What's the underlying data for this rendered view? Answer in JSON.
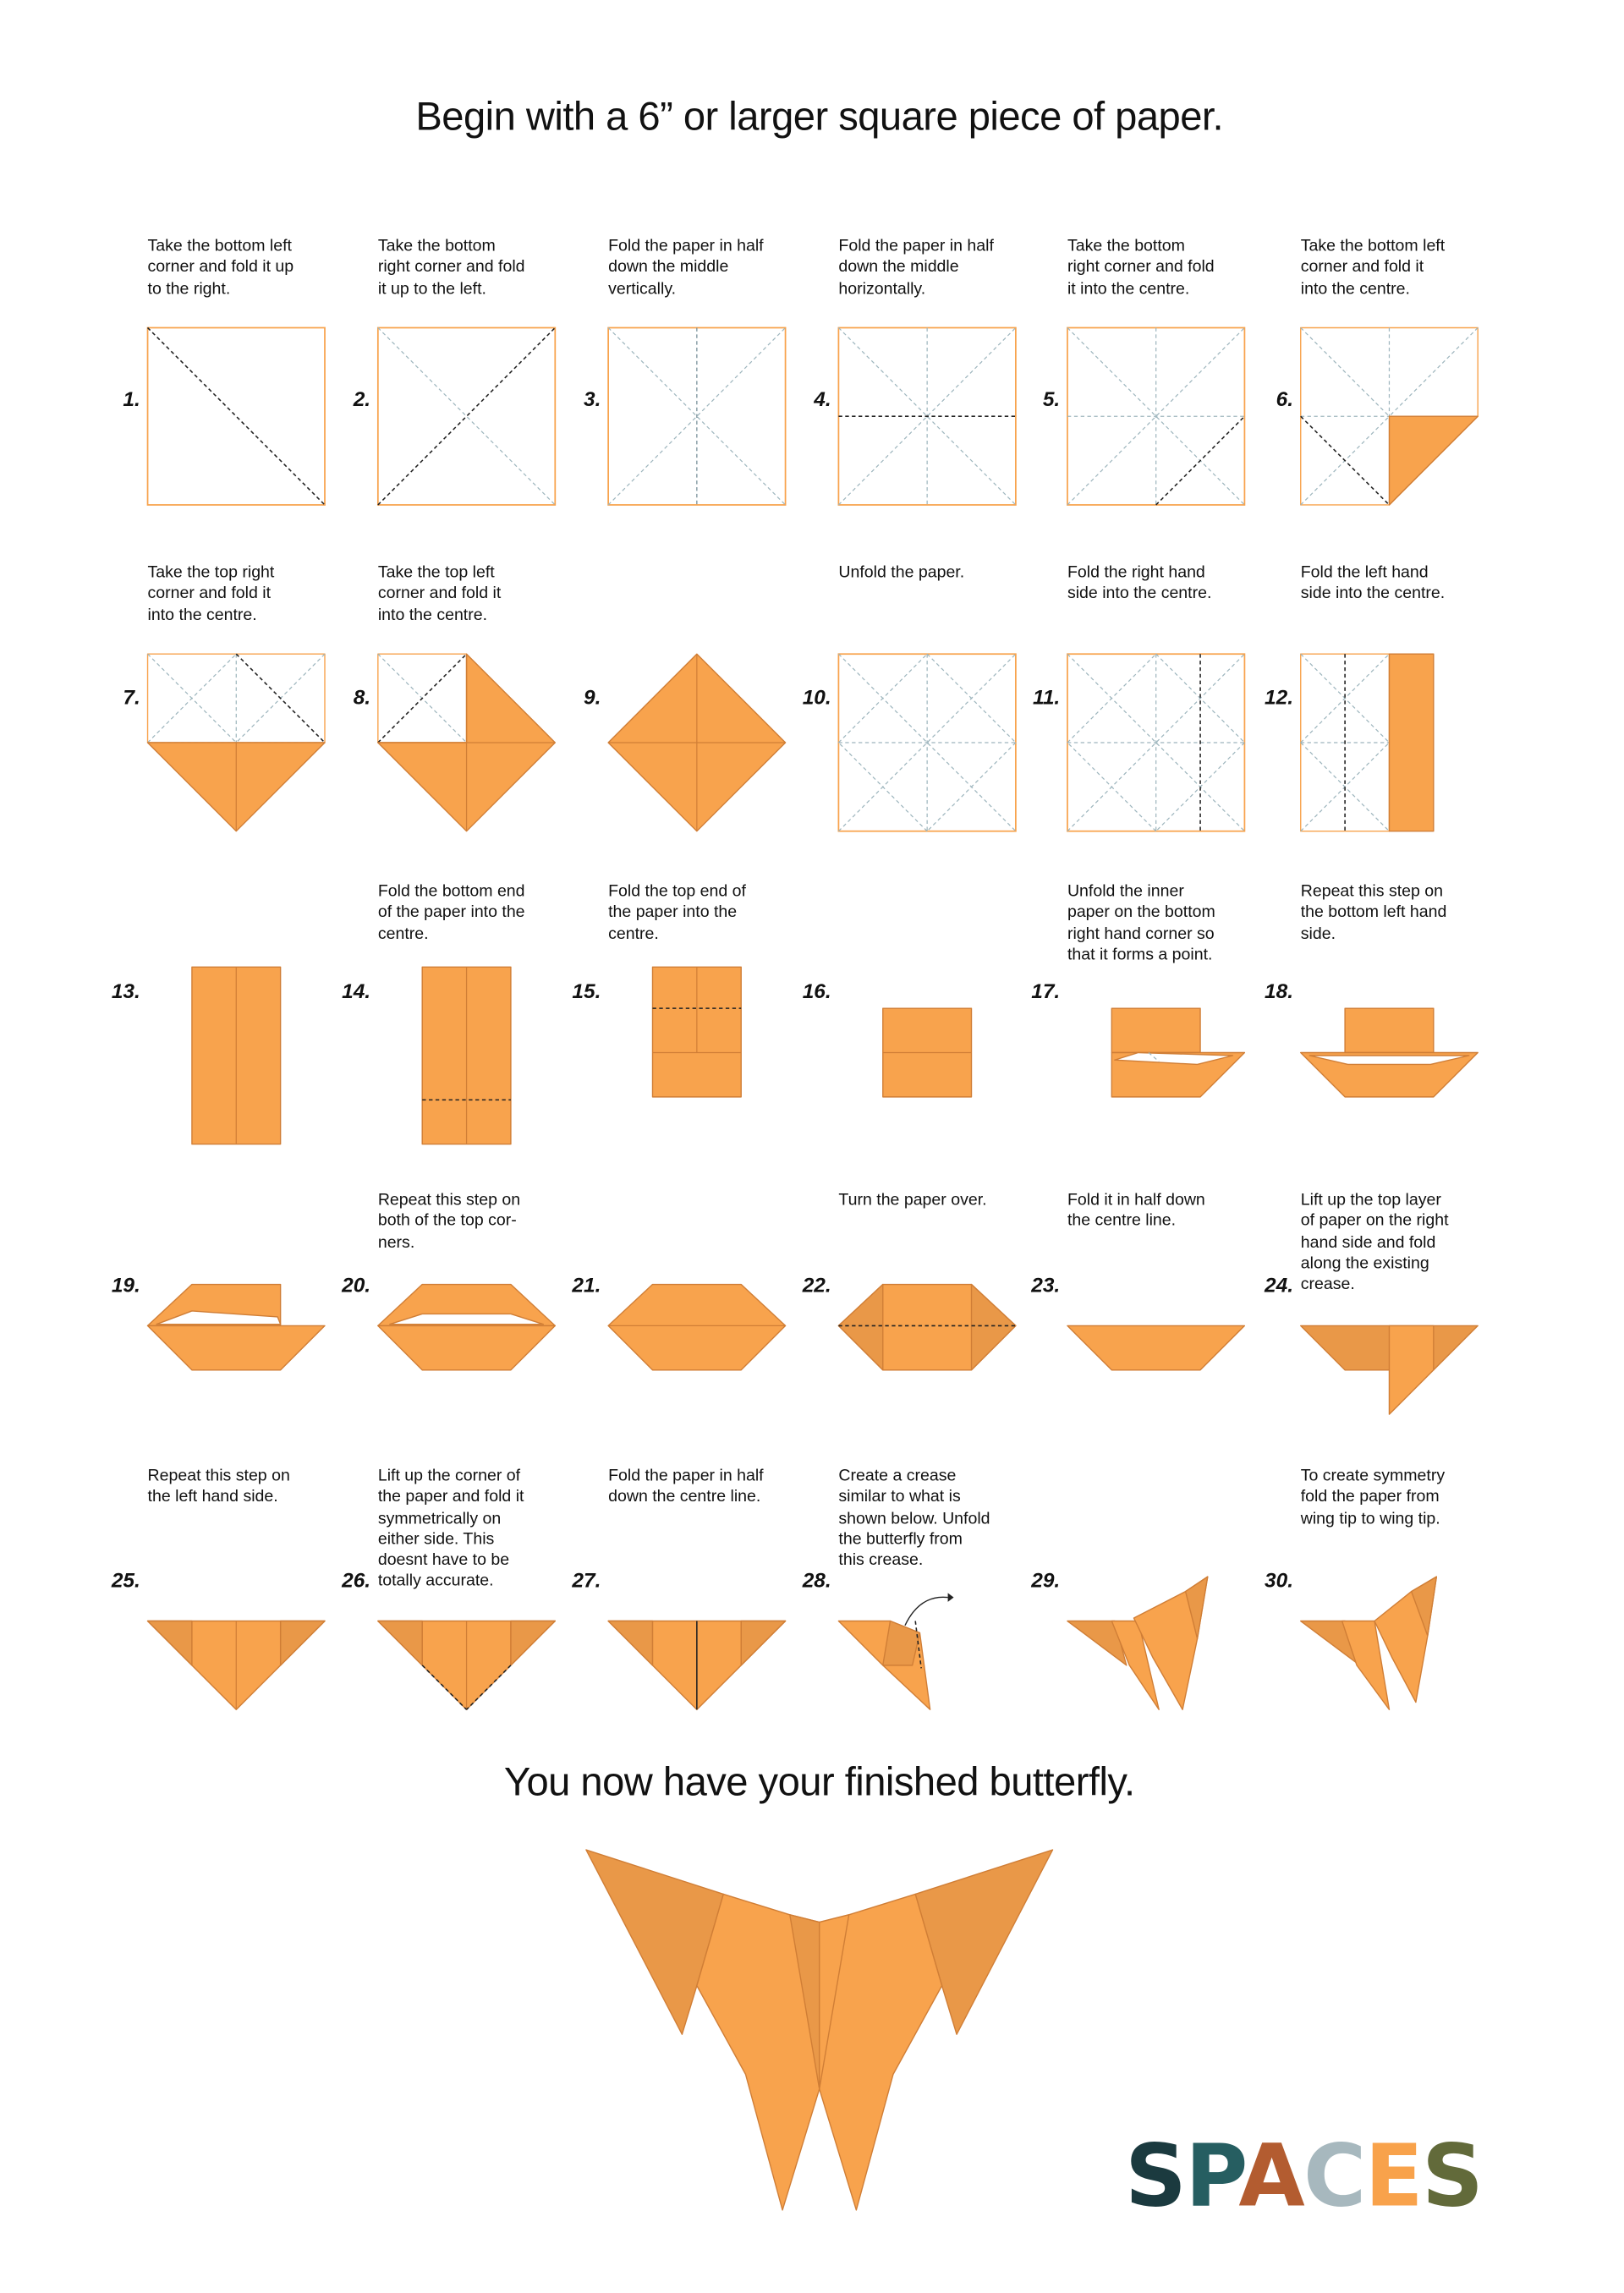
{
  "header": {
    "title": "Begin with a 6” or larger square piece of paper."
  },
  "steps": [
    {
      "number": "1.",
      "text": "Take the bottom left\ncorner and fold it up\nto the right."
    },
    {
      "number": "2.",
      "text": "Take the bottom\nright corner and fold\nit up to the left."
    },
    {
      "number": "3.",
      "text": "Fold the paper in half\ndown the middle\nvertically."
    },
    {
      "number": "4.",
      "text": "Fold the paper in half\ndown the middle\nhorizontally."
    },
    {
      "number": "5.",
      "text": "Take the bottom\nright corner and fold\nit into the centre."
    },
    {
      "number": "6.",
      "text": "Take the bottom left\ncorner and fold it\ninto the centre."
    },
    {
      "number": "7.",
      "text": "Take the top right\ncorner and fold it\ninto the centre."
    },
    {
      "number": "8.",
      "text": "Take the top left\ncorner and fold it\ninto the centre."
    },
    {
      "number": "9.",
      "text": ""
    },
    {
      "number": "10.",
      "text": "Unfold the paper."
    },
    {
      "number": "11.",
      "text": "Fold the right hand\nside into the centre."
    },
    {
      "number": "12.",
      "text": "Fold the left hand\nside into the centre."
    },
    {
      "number": "13.",
      "text": ""
    },
    {
      "number": "14.",
      "text": "Fold the bottom end\nof the paper into the\ncentre."
    },
    {
      "number": "15.",
      "text": "Fold the top end of\nthe paper into the\ncentre."
    },
    {
      "number": "16.",
      "text": ""
    },
    {
      "number": "17.",
      "text": "Unfold the inner\npaper on the bottom\nright hand corner so\nthat it forms a point."
    },
    {
      "number": "18.",
      "text": "Repeat this step on\nthe bottom left hand\nside."
    },
    {
      "number": "19.",
      "text": ""
    },
    {
      "number": "20.",
      "text": "Repeat this step on\nboth of the top cor-\nners."
    },
    {
      "number": "21.",
      "text": ""
    },
    {
      "number": "22.",
      "text": "Turn the paper over."
    },
    {
      "number": "23.",
      "text": "Fold it in half down\nthe centre line."
    },
    {
      "number": "24.",
      "text": "Lift up the top layer\nof paper on the right\nhand side and fold\nalong the existing\ncrease."
    },
    {
      "number": "25.",
      "text": "Repeat this step on\nthe left hand side."
    },
    {
      "number": "26.",
      "text": "Lift up the corner of\nthe paper and fold it\nsymmetrically on\neither side. This\ndoesnt have to be\ntotally accurate."
    },
    {
      "number": "27.",
      "text": "Fold the paper in half\ndown the centre line."
    },
    {
      "number": "28.",
      "text": "Create a crease\nsimilar to what is\nshown below. Unfold\nthe butterfly from\nthis crease."
    },
    {
      "number": "29.",
      "text": ""
    },
    {
      "number": "30.",
      "text": "To create symmetry\nfold the paper from\nwing tip to wing tip."
    }
  ],
  "footer": {
    "title": "You now have your finished butterfly."
  },
  "logo": {
    "text": "SPACES",
    "letter_colors": [
      "#1B3A3F",
      "#265E61",
      "#B35C30",
      "#A7B8BE",
      "#F8A24B",
      "#626A3A"
    ]
  },
  "colors": {
    "paper": "#F8A34D",
    "paper_shade": "#E99848",
    "edge": "#D07E36",
    "crease_guide": "#9DB5BD",
    "crease_active": "#222222"
  }
}
